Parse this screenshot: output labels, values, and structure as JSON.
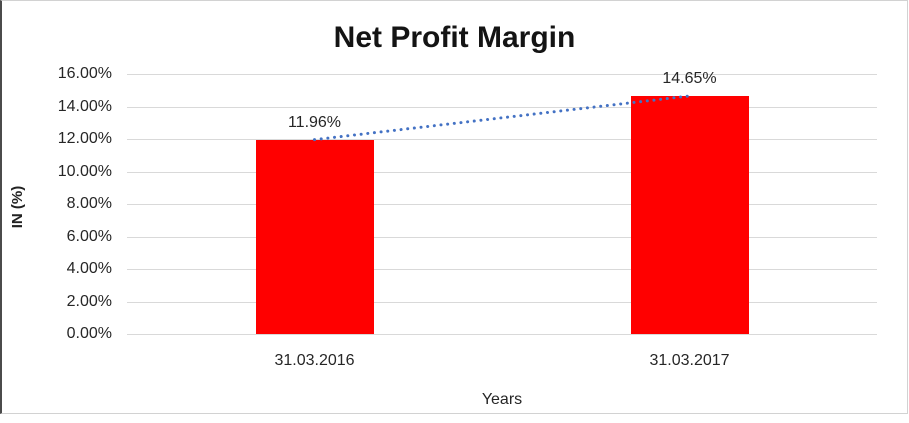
{
  "chart_data": {
    "type": "bar",
    "title": "Net Profit Margin",
    "categories": [
      "31.03.2016",
      "31.03.2017"
    ],
    "values": [
      11.96,
      14.65
    ],
    "data_labels": [
      "11.96%",
      "14.65%"
    ],
    "xlabel": "Years",
    "ylabel": "IN (%)",
    "ylim": [
      0,
      16
    ],
    "ytick_step": 2,
    "ytick_labels": [
      "16.00%",
      "14.00%",
      "12.00%",
      "10.00%",
      "8.00%",
      "6.00%",
      "4.00%",
      "2.00%",
      "0.00%"
    ],
    "grid": true,
    "legend": "none",
    "bar_color": "#ff0000",
    "gridline_color": "#d9d9d9",
    "trendline": {
      "style": "dotted",
      "color": "#4472c4",
      "from_value": 11.96,
      "to_value": 14.65
    }
  }
}
